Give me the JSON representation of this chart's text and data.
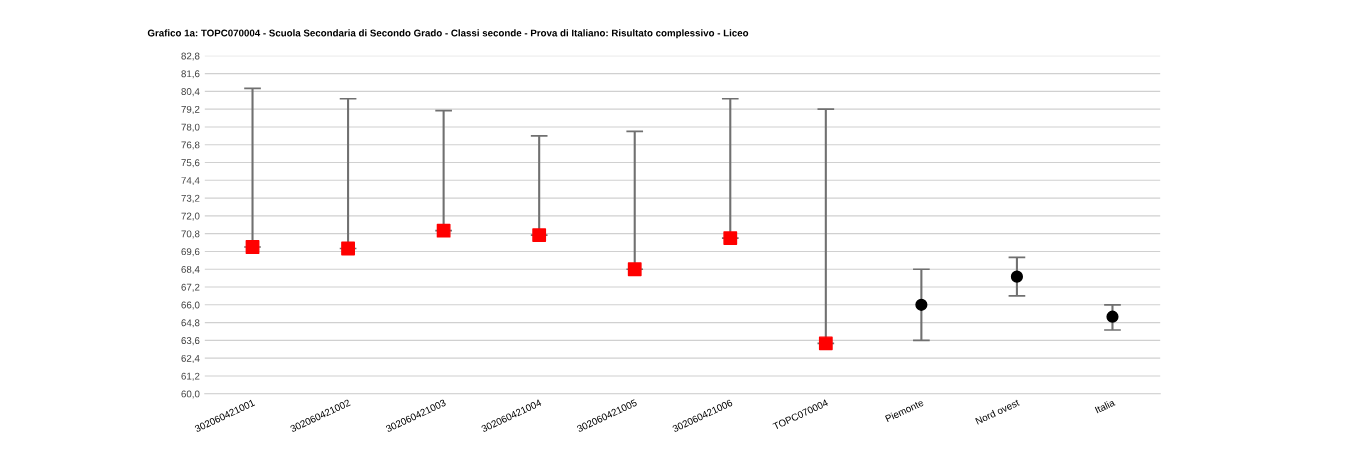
{
  "chart_data": {
    "type": "scatter",
    "title": "Grafico 1a: TOPC070004 - Scuola Secondaria di Secondo Grado - Classi seconde - Prova di Italiano: Risultato complessivo - Liceo",
    "categories": [
      "302060421001",
      "302060421002",
      "302060421003",
      "302060421004",
      "302060421005",
      "302060421006",
      "TOPC070004",
      "Piemonte",
      "Nord ovest",
      "Italia"
    ],
    "series": [
      {
        "marker": "square",
        "color": "#ff0000",
        "values": [
          69.9,
          69.8,
          71.0,
          70.7,
          68.4,
          70.5,
          63.4,
          null,
          null,
          null
        ],
        "errors": [
          [
            69.9,
            80.6
          ],
          [
            69.8,
            79.9
          ],
          [
            71.0,
            79.1
          ],
          [
            70.7,
            77.4
          ],
          [
            68.4,
            77.7
          ],
          [
            70.5,
            79.9
          ],
          [
            63.4,
            79.2
          ],
          null,
          null,
          null
        ]
      },
      {
        "marker": "circle",
        "color": "#000000",
        "values": [
          null,
          null,
          null,
          null,
          null,
          null,
          null,
          66.0,
          67.9,
          65.2
        ],
        "errors": [
          null,
          null,
          null,
          null,
          null,
          null,
          null,
          [
            63.6,
            68.4
          ],
          [
            66.6,
            69.2
          ],
          [
            64.3,
            66.0
          ]
        ]
      }
    ],
    "ylim": [
      60.0,
      82.8
    ],
    "yticks": [
      {
        "value": 60.0,
        "label": "60,0"
      },
      {
        "value": 61.2,
        "label": "61,2"
      },
      {
        "value": 62.4,
        "label": "62,4"
      },
      {
        "value": 63.6,
        "label": "63,6"
      },
      {
        "value": 64.8,
        "label": "64,8"
      },
      {
        "value": 66.0,
        "label": "66,0"
      },
      {
        "value": 67.2,
        "label": "67,2"
      },
      {
        "value": 68.4,
        "label": "68,4"
      },
      {
        "value": 69.6,
        "label": "69,6"
      },
      {
        "value": 70.8,
        "label": "70,8"
      },
      {
        "value": 72.0,
        "label": "72,0"
      },
      {
        "value": 73.2,
        "label": "73,2"
      },
      {
        "value": 74.4,
        "label": "74,4"
      },
      {
        "value": 75.6,
        "label": "75,6"
      },
      {
        "value": 76.8,
        "label": "76,8"
      },
      {
        "value": 78.0,
        "label": "78,0"
      },
      {
        "value": 79.2,
        "label": "79,2"
      },
      {
        "value": 80.4,
        "label": "80,4"
      },
      {
        "value": 81.6,
        "label": "81,6"
      },
      {
        "value": 82.8,
        "label": "82,8"
      }
    ],
    "grid": "y"
  }
}
